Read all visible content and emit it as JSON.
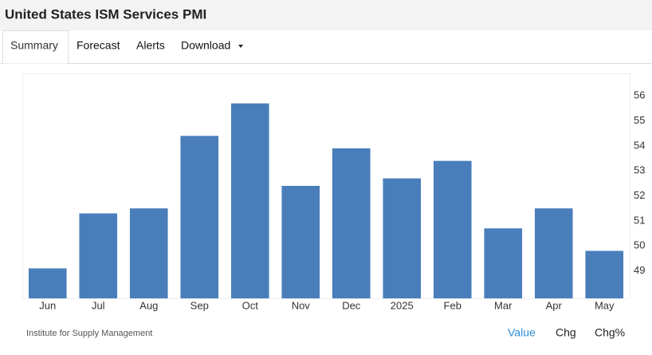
{
  "header": {
    "title": "United States ISM Services PMI"
  },
  "tabs": [
    "Summary",
    "Forecast",
    "Alerts",
    "Download"
  ],
  "chart_data": {
    "type": "bar",
    "categories": [
      "Jun",
      "Jul",
      "Aug",
      "Sep",
      "Oct",
      "Nov",
      "Dec",
      "2025",
      "Feb",
      "Mar",
      "Apr",
      "May"
    ],
    "values": [
      49.1,
      51.3,
      51.5,
      54.4,
      55.7,
      52.4,
      53.9,
      52.7,
      53.4,
      50.7,
      51.5,
      49.8
    ],
    "color": "#4a7ebb",
    "ylim": [
      47.9,
      56.9
    ],
    "yticks": [
      49,
      50,
      51,
      52,
      53,
      54,
      55,
      56
    ],
    "grid": false
  },
  "footer": {
    "source": "Institute for Supply Management",
    "views": [
      "Value",
      "Chg",
      "Chg%"
    ]
  }
}
